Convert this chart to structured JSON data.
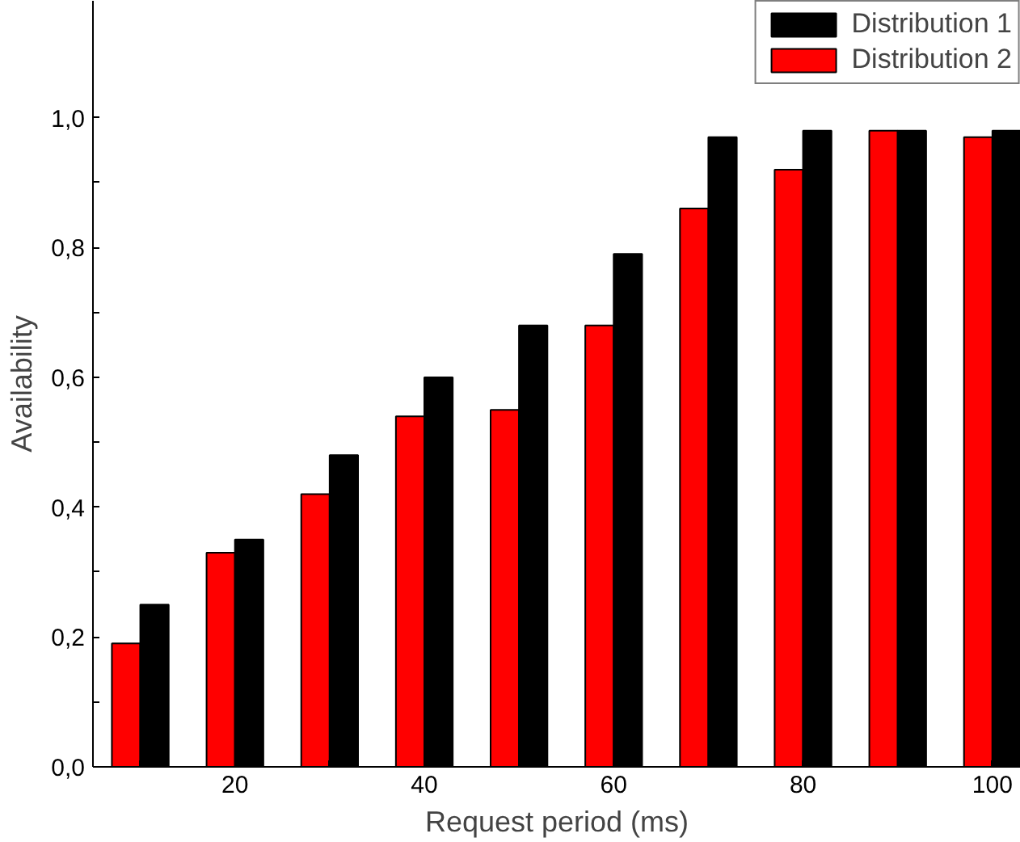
{
  "chart_data": {
    "type": "bar",
    "xlabel": "Request period (ms)",
    "ylabel": "Availability",
    "x": [
      10,
      20,
      30,
      40,
      50,
      60,
      70,
      80,
      90,
      100
    ],
    "series": [
      {
        "name": "Distribution 2",
        "color": "#ff0000",
        "values": [
          0.19,
          0.33,
          0.42,
          0.54,
          0.55,
          0.68,
          0.86,
          0.92,
          0.98,
          0.97
        ]
      },
      {
        "name": "Distribution 1",
        "color": "#000000",
        "values": [
          0.25,
          0.35,
          0.48,
          0.6,
          0.68,
          0.79,
          0.97,
          0.98,
          0.98,
          0.98
        ]
      }
    ],
    "xlim": [
      5,
      103
    ],
    "ylim": [
      0,
      1.18
    ],
    "xticks": [
      {
        "value": 10,
        "label": null
      },
      20,
      {
        "value": 30,
        "label": null
      },
      40,
      {
        "value": 50,
        "label": null
      },
      60,
      {
        "value": 70,
        "label": null
      },
      80,
      {
        "value": 90,
        "label": null
      },
      100
    ],
    "yticks": [
      {
        "value": 0,
        "label": "0,0"
      },
      {
        "value": 0.1,
        "label": null
      },
      {
        "value": 0.2,
        "label": "0,2"
      },
      {
        "value": 0.3,
        "label": null
      },
      {
        "value": 0.4,
        "label": "0,4"
      },
      {
        "value": 0.5,
        "label": null
      },
      {
        "value": 0.6,
        "label": "0,6"
      },
      {
        "value": 0.7,
        "label": null
      },
      {
        "value": 0.8,
        "label": "0,8"
      },
      {
        "value": 0.9,
        "label": null
      },
      {
        "value": 1.0,
        "label": "1,0"
      }
    ],
    "grid": false,
    "legend": "top right"
  }
}
